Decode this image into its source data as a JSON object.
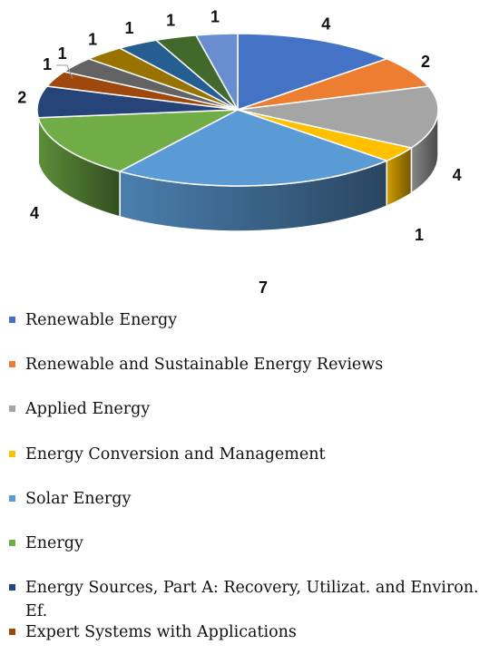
{
  "chart_data": {
    "type": "pie",
    "style": "3d-pie",
    "title": "",
    "legend_position": "bottom",
    "slices": [
      {
        "name": "Renewable Energy",
        "value": 4,
        "label": "4",
        "color": "#4472C4"
      },
      {
        "name": "Renewable and Sustainable Energy Reviews",
        "value": 2,
        "label": "2",
        "color": "#ED7D31"
      },
      {
        "name": "Applied Energy",
        "value": 4,
        "label": "4",
        "color": "#A5A5A5"
      },
      {
        "name": "Energy Conversion and Management",
        "value": 1,
        "label": "1",
        "color": "#FFC000"
      },
      {
        "name": "Solar Energy",
        "value": 7,
        "label": "7",
        "color": "#5B9BD5"
      },
      {
        "name": "Energy",
        "value": 4,
        "label": "4",
        "color": "#70AD47"
      },
      {
        "name": "Energy Sources, Part A: Recovery, Utilizat. and Environ. Ef.",
        "value": 2,
        "label": "2",
        "color": "#264478"
      },
      {
        "name": "Expert Systems with Applications",
        "value": 1,
        "label": "1",
        "color": "#9E480E"
      },
      {
        "name": "",
        "value": 1,
        "label": "1",
        "color": "#636363"
      },
      {
        "name": "",
        "value": 1,
        "label": "1",
        "color": "#997300"
      },
      {
        "name": "",
        "value": 1,
        "label": "1",
        "color": "#255E91"
      },
      {
        "name": "",
        "value": 1,
        "label": "1",
        "color": "#43682B"
      },
      {
        "name": "",
        "value": 1,
        "label": "1",
        "color": "#698ED0"
      }
    ]
  }
}
